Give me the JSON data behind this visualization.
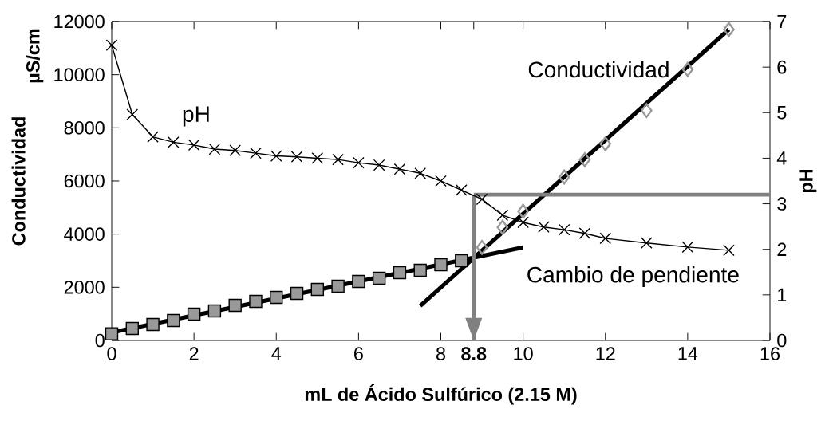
{
  "chart_data": {
    "type": "line",
    "xlabel": "mL de Ácido Sulfúrico (2.15 M)",
    "ylabel": "Conductividad",
    "y2label": "pH",
    "xlim": [
      0,
      16
    ],
    "xticks": [
      0,
      2,
      4,
      6,
      {
        "value": 8.8,
        "label": "**8.8**"
      },
      8,
      10,
      12,
      14,
      16
    ],
    "ylim": [
      0,
      12000
    ],
    "yticks": [
      0,
      2000,
      4000,
      6000,
      8000,
      10000,
      12000
    ],
    "y2lim": [
      0,
      7
    ],
    "y2ticks": [
      0,
      1,
      2,
      3,
      4,
      5,
      6,
      7
    ],
    "annotations": [
      "Cambio de pendiente",
      "µS/cm"
    ],
    "ref_lines": [
      {
        "axis": "x",
        "value": 8.8,
        "color": "#808080"
      },
      {
        "axis": "y2",
        "value": 3.2,
        "color": "#808080"
      }
    ],
    "series": [
      {
        "type": "scatter",
        "marker": "square",
        "color": "#999999",
        "x": [
          0,
          0.5,
          1,
          1.5,
          2,
          2.5,
          3,
          3.5,
          4,
          4.5,
          5,
          5.5,
          6,
          6.5,
          7,
          7.5,
          8,
          8.5
        ],
        "values": [
          250,
          450,
          600,
          750,
          990,
          1110,
          1320,
          1470,
          1620,
          1770,
          1920,
          2040,
          2220,
          2340,
          2550,
          2640,
          2850,
          3000
        ]
      },
      {
        "name": "Conductividad",
        "type": "scatter",
        "marker": "diamond",
        "color": "#999999",
        "x": [
          9,
          9.5,
          10,
          11,
          11.5,
          12,
          13,
          14,
          15
        ],
        "values": [
          3500,
          4260,
          4860,
          6150,
          6800,
          7400,
          8650,
          10200,
          11700
        ]
      },
      {
        "marker": "none",
        "color": "#000000",
        "x": [
          0,
          10
        ],
        "values": [
          300,
          3500
        ]
      },
      {
        "marker": "none",
        "color": "#000000",
        "x": [
          7.5,
          15
        ],
        "values": [
          1300,
          11700
        ]
      },
      {
        "name": "pH",
        "axis": "y2",
        "marker": "cross",
        "color": "#000000",
        "x": [
          0,
          0.5,
          1,
          1.5,
          2,
          2.5,
          3,
          3.5,
          4,
          4.5,
          5,
          5.5,
          6,
          6.5,
          7,
          7.5,
          8,
          8.5,
          9,
          9.5,
          10,
          10.5,
          11,
          11.5,
          12,
          13,
          14,
          15
        ],
        "values": [
          6.48,
          4.96,
          4.47,
          4.35,
          4.29,
          4.2,
          4.17,
          4.11,
          4.05,
          4.03,
          4.0,
          3.97,
          3.9,
          3.85,
          3.76,
          3.67,
          3.5,
          3.3,
          3.1,
          2.75,
          2.59,
          2.49,
          2.43,
          2.35,
          2.24,
          2.14,
          2.05,
          1.98
        ]
      }
    ]
  }
}
